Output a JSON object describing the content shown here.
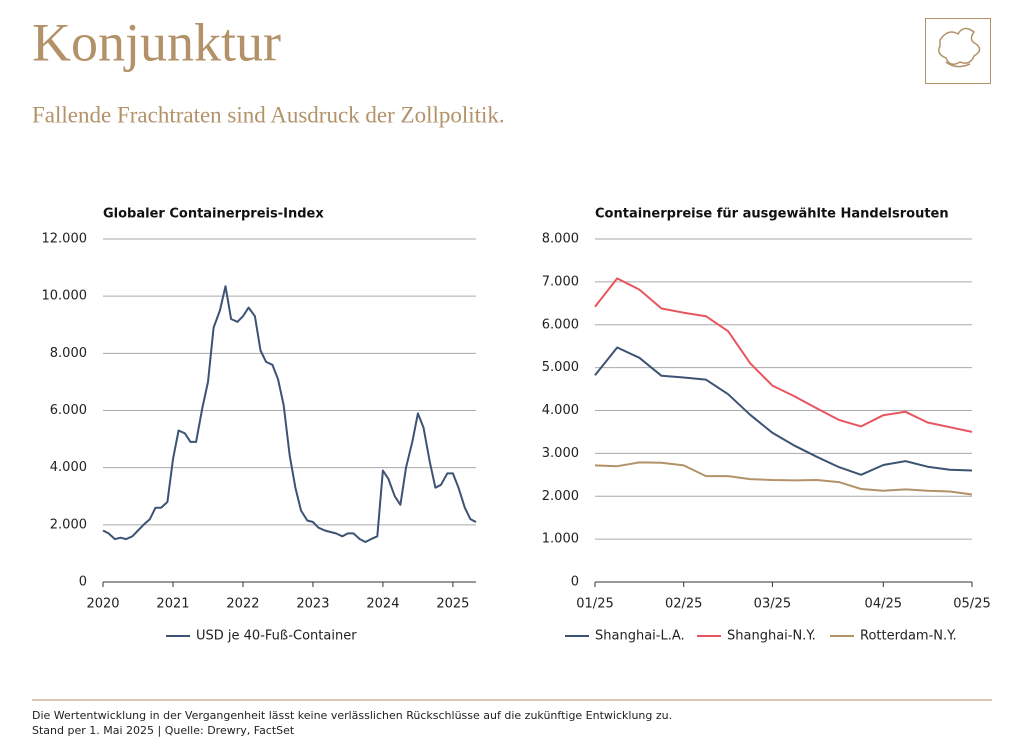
{
  "header": {
    "title": "Konjunktur",
    "subtitle": "Fallende Frachtraten sind Ausdruck der Zollpolitik."
  },
  "chart_data": [
    {
      "type": "line",
      "title": "Globaler Containerpreis-Index",
      "x": [
        2020.0,
        2020.08,
        2020.17,
        2020.25,
        2020.33,
        2020.42,
        2020.5,
        2020.58,
        2020.67,
        2020.75,
        2020.83,
        2020.92,
        2021.0,
        2021.08,
        2021.17,
        2021.25,
        2021.33,
        2021.42,
        2021.5,
        2021.58,
        2021.67,
        2021.75,
        2021.83,
        2021.92,
        2022.0,
        2022.08,
        2022.17,
        2022.25,
        2022.33,
        2022.42,
        2022.5,
        2022.58,
        2022.67,
        2022.75,
        2022.83,
        2022.92,
        2023.0,
        2023.08,
        2023.17,
        2023.25,
        2023.33,
        2023.42,
        2023.5,
        2023.58,
        2023.67,
        2023.75,
        2023.83,
        2023.92,
        2024.0,
        2024.08,
        2024.17,
        2024.25,
        2024.33,
        2024.42,
        2024.5,
        2024.58,
        2024.67,
        2024.75,
        2024.83,
        2024.92,
        2025.0,
        2025.08,
        2025.17,
        2025.25,
        2025.33
      ],
      "series": [
        {
          "name": "USD je 40-Fuß-Container",
          "color": "#3d5373",
          "values": [
            1800,
            1700,
            1500,
            1550,
            1500,
            1600,
            1800,
            2000,
            2200,
            2600,
            2600,
            2800,
            4300,
            5300,
            5200,
            4900,
            4900,
            6100,
            7000,
            8900,
            9500,
            10350,
            9200,
            9100,
            9300,
            9600,
            9300,
            8100,
            7700,
            7600,
            7100,
            6200,
            4400,
            3300,
            2500,
            2150,
            2100,
            1900,
            1800,
            1750,
            1700,
            1600,
            1700,
            1700,
            1500,
            1400,
            1500,
            1600,
            3900,
            3600,
            3000,
            2700,
            4000,
            4900,
            5900,
            5400,
            4200,
            3300,
            3400,
            3800,
            3800,
            3300,
            2600,
            2200,
            2100
          ]
        }
      ],
      "xlim": [
        2020,
        2025.33
      ],
      "xticks": [
        2020,
        2021,
        2022,
        2023,
        2024,
        2025
      ],
      "ylim": [
        0,
        12000
      ],
      "yticks": [
        0,
        {
          "value": 2000,
          "label": "2.000"
        },
        {
          "value": 4000,
          "label": "4.000"
        },
        {
          "value": 6000,
          "label": "6.000"
        },
        {
          "value": 8000,
          "label": "8.000"
        },
        {
          "value": 10000,
          "label": "10.000"
        },
        {
          "value": 12000,
          "label": "12.000"
        }
      ],
      "grid": true
    },
    {
      "type": "line",
      "title": "Containerpreise für ausgewählte Handelsrouten",
      "categories": [
        "01/25",
        null,
        null,
        null,
        "02/25",
        null,
        null,
        null,
        "03/25",
        null,
        null,
        null,
        null,
        "04/25",
        null,
        null,
        null,
        "05/25"
      ],
      "series": [
        {
          "name": "Shanghai-L.A.",
          "color": "#3d5373",
          "values": [
            4820,
            5470,
            5230,
            4810,
            4770,
            4720,
            4380,
            3900,
            3480,
            3180,
            2920,
            2680,
            2500,
            2730,
            2820,
            2690,
            2620,
            2600
          ]
        },
        {
          "name": "Shanghai-N.Y.",
          "color": "#e8555f",
          "values": [
            6420,
            7080,
            6820,
            6380,
            6280,
            6200,
            5850,
            5100,
            4580,
            4330,
            4050,
            3780,
            3630,
            3890,
            3970,
            3720,
            3610,
            3500
          ]
        },
        {
          "name": "Rotterdam-N.Y.",
          "color": "#b3926a",
          "values": [
            2720,
            2700,
            2790,
            2780,
            2720,
            2470,
            2470,
            2400,
            2380,
            2370,
            2380,
            2330,
            2170,
            2130,
            2160,
            2130,
            2110,
            2040
          ]
        }
      ],
      "ylim": [
        0,
        8000
      ],
      "yticks": [
        0,
        {
          "value": 1000,
          "label": "1.000"
        },
        {
          "value": 2000,
          "label": "2.000"
        },
        {
          "value": 3000,
          "label": "3.000"
        },
        {
          "value": 4000,
          "label": "4.000"
        },
        {
          "value": 5000,
          "label": "5.000"
        },
        {
          "value": 6000,
          "label": "6.000"
        },
        {
          "value": 7000,
          "label": "7.000"
        },
        {
          "value": 8000,
          "label": "8.000"
        }
      ],
      "grid": true
    }
  ],
  "footer": {
    "disclaimer": "Die Wertentwicklung in der Vergangenheit lässt keine verlässlichen Rückschlüsse auf die zukünftige Entwicklung zu.",
    "source": "Stand per 1. Mai 2025 | Quelle: Drewry, FactSet"
  }
}
